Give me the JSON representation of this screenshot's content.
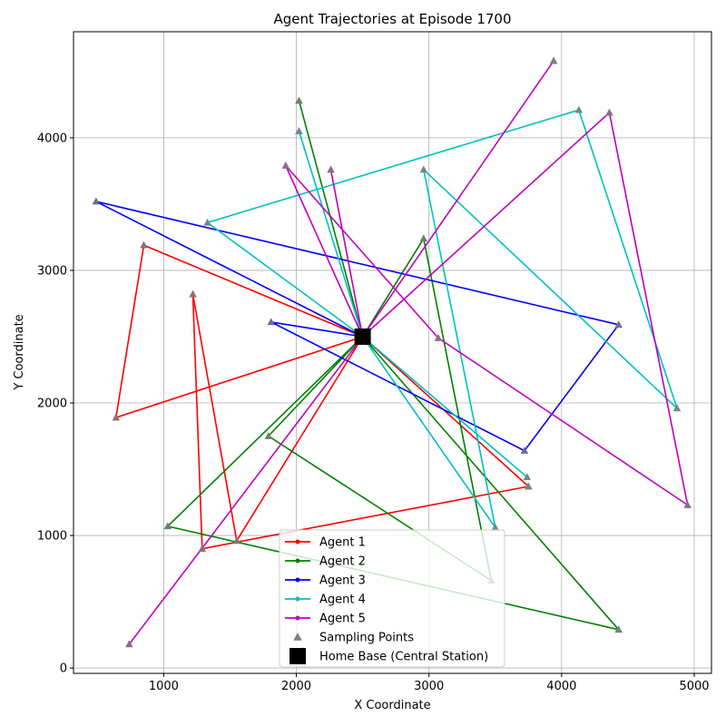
{
  "chart_data": {
    "type": "line",
    "title": "Agent Trajectories at Episode 1700",
    "xlabel": "X Coordinate",
    "ylabel": "Y Coordinate",
    "xlim": [
      320,
      5130
    ],
    "ylim": [
      -40,
      4800
    ],
    "xticks": [
      1000,
      2000,
      3000,
      4000,
      5000
    ],
    "yticks": [
      0,
      1000,
      2000,
      3000,
      4000
    ],
    "grid": true,
    "legend_position": "lower center",
    "home_base": {
      "name": "Home Base (Central Station)",
      "x": 2500,
      "y": 2500,
      "color": "#000000"
    },
    "sampling_points_label": "Sampling Points",
    "sampling_color": "#808080",
    "series": [
      {
        "name": "Agent 1",
        "color": "#ff0000",
        "points": [
          [
            2500,
            2500
          ],
          [
            850,
            3190
          ],
          [
            640,
            1890
          ],
          [
            2500,
            2500
          ],
          [
            3750,
            1370
          ],
          [
            2500,
            2500
          ],
          [
            1550,
            960
          ],
          [
            1220,
            2820
          ],
          [
            1290,
            900
          ],
          [
            3750,
            1370
          ]
        ]
      },
      {
        "name": "Agent 2",
        "color": "#008000",
        "points": [
          [
            2500,
            2500
          ],
          [
            2020,
            4280
          ],
          [
            2500,
            2500
          ],
          [
            4430,
            290
          ],
          [
            2500,
            2500
          ],
          [
            1030,
            1070
          ],
          [
            4430,
            290
          ],
          [
            2500,
            2500
          ],
          [
            2960,
            3240
          ],
          [
            3470,
            660
          ],
          [
            1790,
            1750
          ],
          [
            2500,
            2500
          ]
        ]
      },
      {
        "name": "Agent 3",
        "color": "#0000ff",
        "points": [
          [
            2500,
            2500
          ],
          [
            490,
            3520
          ],
          [
            4430,
            2590
          ],
          [
            3720,
            1640
          ],
          [
            1810,
            2610
          ],
          [
            2500,
            2500
          ]
        ]
      },
      {
        "name": "Agent 4",
        "color": "#00bfbf",
        "points": [
          [
            2500,
            2500
          ],
          [
            2020,
            4050
          ],
          [
            2500,
            2500
          ],
          [
            3740,
            1440
          ],
          [
            2500,
            2500
          ],
          [
            1330,
            3360
          ],
          [
            4130,
            4210
          ],
          [
            4870,
            1960
          ],
          [
            2960,
            3760
          ],
          [
            3500,
            1060
          ],
          [
            2500,
            2500
          ]
        ]
      },
      {
        "name": "Agent 5",
        "color": "#bf00bf",
        "points": [
          [
            2500,
            2500
          ],
          [
            3940,
            4580
          ],
          [
            2500,
            2500
          ],
          [
            1920,
            3790
          ],
          [
            3070,
            2490
          ],
          [
            4950,
            1230
          ],
          [
            4360,
            4190
          ],
          [
            2500,
            2500
          ],
          [
            740,
            180
          ],
          [
            2500,
            2500
          ],
          [
            3940,
            4580
          ],
          [
            2500,
            2500
          ],
          [
            2260,
            3760
          ],
          [
            2500,
            2500
          ]
        ]
      }
    ]
  }
}
